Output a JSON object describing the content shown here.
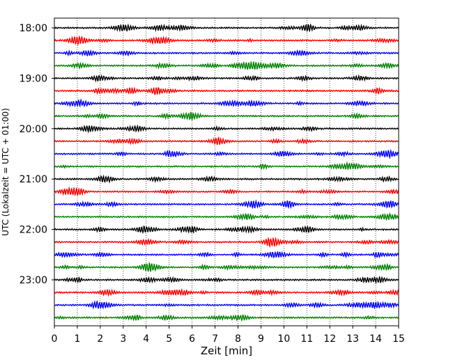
{
  "chart_data": {
    "type": "line",
    "title": "",
    "xlabel": "Zeit  [min]",
    "ylabel": "UTC (Lokalzeit = UTC + 01:00)",
    "xlim": [
      0,
      15
    ],
    "x_ticks": [
      "0",
      "1",
      "2",
      "3",
      "4",
      "5",
      "6",
      "7",
      "8",
      "9",
      "10",
      "11",
      "12",
      "13",
      "14",
      "15"
    ],
    "y_ticks": [
      "18:00",
      "19:00",
      "20:00",
      "21:00",
      "22:00",
      "23:00"
    ],
    "grid": "vertical dotted lines at each minute",
    "trace_interval_minutes": 15,
    "trace_colors": [
      "#000000",
      "#ff0000",
      "#0000ff",
      "#008000"
    ],
    "traces": [
      {
        "start": "18:00",
        "color": "#000000"
      },
      {
        "start": "18:15",
        "color": "#ff0000"
      },
      {
        "start": "18:30",
        "color": "#0000ff"
      },
      {
        "start": "18:45",
        "color": "#008000"
      },
      {
        "start": "19:00",
        "color": "#000000"
      },
      {
        "start": "19:15",
        "color": "#ff0000"
      },
      {
        "start": "19:30",
        "color": "#0000ff"
      },
      {
        "start": "19:45",
        "color": "#008000"
      },
      {
        "start": "20:00",
        "color": "#000000"
      },
      {
        "start": "20:15",
        "color": "#ff0000"
      },
      {
        "start": "20:30",
        "color": "#0000ff"
      },
      {
        "start": "20:45",
        "color": "#008000"
      },
      {
        "start": "21:00",
        "color": "#000000"
      },
      {
        "start": "21:15",
        "color": "#ff0000"
      },
      {
        "start": "21:30",
        "color": "#0000ff"
      },
      {
        "start": "21:45",
        "color": "#008000"
      },
      {
        "start": "22:00",
        "color": "#000000"
      },
      {
        "start": "22:15",
        "color": "#ff0000"
      },
      {
        "start": "22:30",
        "color": "#0000ff"
      },
      {
        "start": "22:45",
        "color": "#008000"
      },
      {
        "start": "23:00",
        "color": "#000000"
      },
      {
        "start": "23:15",
        "color": "#ff0000"
      },
      {
        "start": "23:30",
        "color": "#0000ff"
      },
      {
        "start": "23:45",
        "color": "#008000"
      }
    ]
  }
}
